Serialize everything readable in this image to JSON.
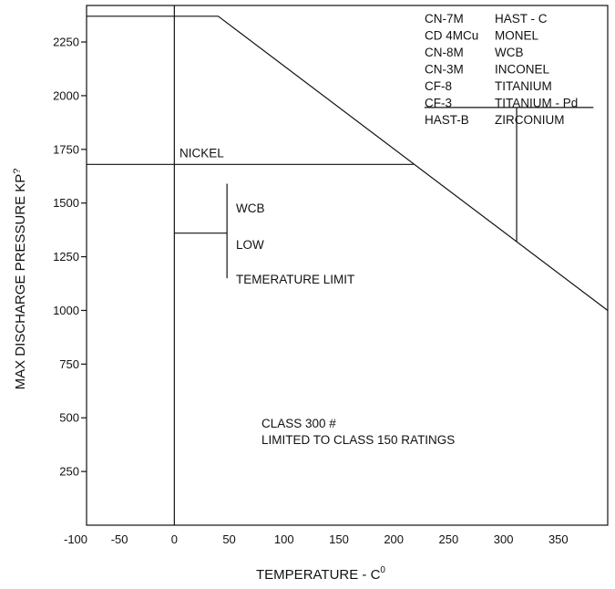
{
  "chart_data": {
    "type": "line",
    "xlabel": "TEMPERATURE - C",
    "xlabel_degree": "0",
    "ylabel": "MAX DISCHARGE PRESSURE KP",
    "ylabel_suffix": "?",
    "xlim": [
      -80,
      395
    ],
    "ylim": [
      0,
      2420
    ],
    "x_ticks": [
      {
        "value": -50,
        "label": "-50"
      },
      {
        "value": 0,
        "label": "0"
      },
      {
        "value": 50,
        "label": "50"
      },
      {
        "value": 100,
        "label": "100"
      },
      {
        "value": 150,
        "label": "150"
      },
      {
        "value": 200,
        "label": "200"
      },
      {
        "value": 250,
        "label": "250"
      },
      {
        "value": 300,
        "label": "300"
      },
      {
        "value": 350,
        "label": "350"
      }
    ],
    "x_extra_label": {
      "value": -80,
      "label": "-100"
    },
    "y_ticks": [
      {
        "value": 250,
        "label": "250"
      },
      {
        "value": 500,
        "label": "500"
      },
      {
        "value": 750,
        "label": "750"
      },
      {
        "value": 1000,
        "label": "1000"
      },
      {
        "value": 1250,
        "label": "1250"
      },
      {
        "value": 1500,
        "label": "1500"
      },
      {
        "value": 1750,
        "label": "1750"
      },
      {
        "value": 2000,
        "label": "2000"
      },
      {
        "value": 2250,
        "label": "2250"
      }
    ],
    "series": [
      {
        "points": [
          [
            -80,
            2370
          ],
          [
            40,
            2370
          ],
          [
            395,
            1000
          ]
        ]
      }
    ],
    "nickel_line": {
      "x_start": -80,
      "x_end": 218,
      "y": 1680,
      "label": "NICKEL"
    },
    "vertical_zero_line": {
      "x": 0
    },
    "wcb_limit": {
      "bracket_x": 48,
      "y_top": 1590,
      "y_bottom": 1150,
      "stub_x_start": 0,
      "stub_y": 1360,
      "labels": [
        "WCB",
        "LOW",
        "TEMERATURE LIMIT"
      ]
    },
    "materials_table": {
      "left": [
        "CN-7M",
        "CD 4MCu",
        "CN-8M",
        "CN-3M",
        "CF-8",
        "CF-3",
        "HAST-B"
      ],
      "right": [
        "HAST - C",
        "MONEL",
        "WCB",
        "INCONEL",
        "TITANIUM",
        "TITANIUM - Pd",
        "ZIRCONIUM"
      ],
      "underline_x_start": 228,
      "underline_x_end": 382,
      "underline_y": 1945,
      "leader_x": 312
    },
    "class_note": [
      "CLASS 300 #",
      "LIMITED TO CLASS 150 RATINGS"
    ],
    "grid": false,
    "legend": "none"
  }
}
